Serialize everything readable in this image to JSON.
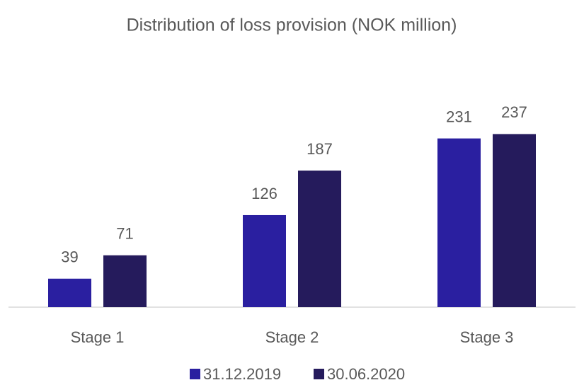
{
  "chart_data": {
    "type": "bar",
    "title": "Distribution of loss provision (NOK million)",
    "categories": [
      "Stage 1",
      "Stage 2",
      "Stage 3"
    ],
    "series": [
      {
        "name": "31.12.2019",
        "color": "#2a1fa0",
        "values": [
          39,
          126,
          231
        ]
      },
      {
        "name": "30.06.2020",
        "color": "#251b5c",
        "values": [
          71,
          187,
          237
        ]
      }
    ],
    "ylim": [
      0,
      250
    ],
    "legend": "bottom"
  }
}
